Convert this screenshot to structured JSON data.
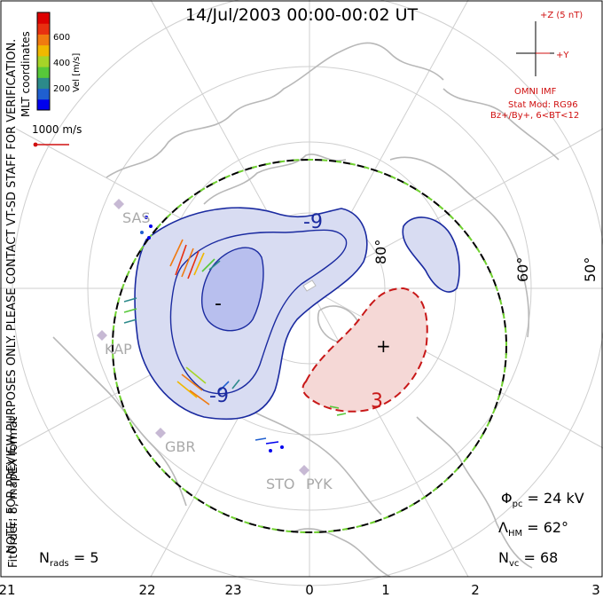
{
  "title": "14/Jul/2003 00:00-00:02 UT",
  "colorbar": {
    "label": "Vel [m/s]",
    "ticks": [
      "600",
      "400",
      "200"
    ],
    "colors": [
      "#0000ee",
      "#1f5fd0",
      "#2c8a8a",
      "#57c83a",
      "#a6d428",
      "#f0b800",
      "#f07a10",
      "#e83010",
      "#dd0000"
    ]
  },
  "coordinates_label": "MLT coordinates",
  "velocity_scale": "1000 m/s",
  "imf": {
    "z_label": "+Z (5 nT)",
    "y_label": "+Y",
    "source": "OMNI IMF",
    "model": "Stat Mod: RG96",
    "condition": "Bz+/By+, 6<BT<12"
  },
  "notes": {
    "preview": "NOTE: FOR PREVIEW PURPOSES ONLY. PLEASE CONTACT VT-SD STAFF FOR VERIFICATION.",
    "fit": "FitOrder: 8, mapEX format"
  },
  "latitude_labels": [
    "80°",
    "60°",
    "50°"
  ],
  "stations": [
    "SAS",
    "KAP",
    "GBR",
    "STO",
    "PYK"
  ],
  "contours": [
    {
      "label": "-9",
      "polarity": "negative"
    },
    {
      "label": "-9",
      "polarity": "negative"
    },
    {
      "label": "-",
      "polarity": "negative-minimum"
    },
    {
      "label": "3",
      "polarity": "positive"
    },
    {
      "label": "+",
      "polarity": "positive-maximum"
    }
  ],
  "stats": {
    "phi_pc": {
      "symbol": "Φ",
      "sub": "pc",
      "value": "= 24 kV"
    },
    "lambda_hm": {
      "symbol": "Λ",
      "sub": "HM",
      "value": "= 62°"
    },
    "n_vc": {
      "symbol": "N",
      "sub": "vc",
      "value": "= 68"
    },
    "n_rads": {
      "symbol": "N",
      "sub": "rads",
      "value": "= 5"
    }
  },
  "mlt_axis": [
    "21",
    "22",
    "23",
    "0",
    "1",
    "2",
    "3"
  ],
  "colors": {
    "negative_fill": "#d8dcf2",
    "negative_core": "#b8bfee",
    "negative_line": "#1a2aa0",
    "positive_fill": "#f5d8d6",
    "positive_line": "#c81818",
    "coast": "#b8b8b8",
    "grid": "#cfcfcf",
    "boundary_dash": "#6fd12e"
  }
}
